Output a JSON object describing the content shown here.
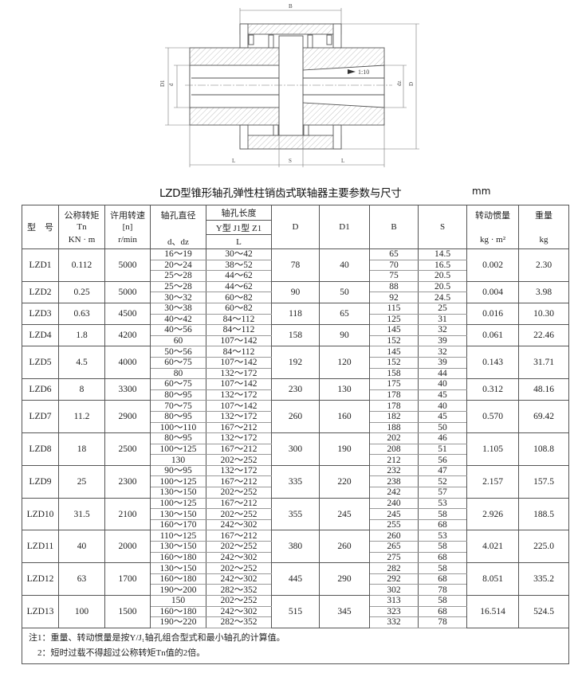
{
  "drawing": {
    "labels": {
      "B": "B",
      "L_left": "L",
      "S": "S",
      "L_right": "L",
      "D1": "D1",
      "d": "d",
      "dz": "dz",
      "D": "D",
      "taper": "1:10"
    }
  },
  "title": "LZD型锥形轴孔弹性柱销齿式联轴器主要参数与尺寸",
  "unit": "mm",
  "table": {
    "headers": {
      "model": "型　号",
      "tn_top": "公称转矩",
      "tn_mid": "Tn",
      "tn_unit": "KN · m",
      "n_top": "许用转速",
      "n_mid": "[n]",
      "n_unit": "r/min",
      "d_top": "轴孔直径",
      "d_unit": "d、dz",
      "l_top": "轴孔长度",
      "l_types": "Y型 J1型 Z1",
      "l_unit": "L",
      "D": "D",
      "D1": "D1",
      "B": "B",
      "S": "S",
      "inertia_top": "转动惯量",
      "inertia_unit": "kg · m²",
      "weight_top": "重量",
      "weight_unit": "kg"
    },
    "rows": [
      {
        "model": "LZD1",
        "tn": "0.112",
        "n": "5000",
        "D": "78",
        "D1": "40",
        "inertia": "0.002",
        "weight": "2.30",
        "sub": [
          [
            "16～19",
            "30～42",
            "65",
            "14.5"
          ],
          [
            "20～24",
            "38～52",
            "70",
            "16.5"
          ],
          [
            "25～28",
            "44～62",
            "75",
            "20.5"
          ]
        ]
      },
      {
        "model": "LZD2",
        "tn": "0.25",
        "n": "5000",
        "D": "90",
        "D1": "50",
        "inertia": "0.004",
        "weight": "3.98",
        "sub": [
          [
            "25～28",
            "44～62",
            "88",
            "20.5"
          ],
          [
            "30～32",
            "60～82",
            "92",
            "24.5"
          ]
        ]
      },
      {
        "model": "LZD3",
        "tn": "0.63",
        "n": "4500",
        "D": "118",
        "D1": "65",
        "inertia": "0.016",
        "weight": "10.30",
        "sub": [
          [
            "30～38",
            "60～82",
            "115",
            "25"
          ],
          [
            "40～42",
            "84～112",
            "125",
            "31"
          ]
        ]
      },
      {
        "model": "LZD4",
        "tn": "1.8",
        "n": "4200",
        "D": "158",
        "D1": "90",
        "inertia": "0.061",
        "weight": "22.46",
        "sub": [
          [
            "40～56",
            "84～112",
            "145",
            "32"
          ],
          [
            "60",
            "107～142",
            "152",
            "39"
          ]
        ]
      },
      {
        "model": "LZD5",
        "tn": "4.5",
        "n": "4000",
        "D": "192",
        "D1": "120",
        "inertia": "0.143",
        "weight": "31.71",
        "sub": [
          [
            "50～56",
            "84～112",
            "145",
            "32"
          ],
          [
            "60～75",
            "107～142",
            "152",
            "39"
          ],
          [
            "80",
            "132～172",
            "158",
            "44"
          ]
        ]
      },
      {
        "model": "LZD6",
        "tn": "8",
        "n": "3300",
        "D": "230",
        "D1": "130",
        "inertia": "0.312",
        "weight": "48.16",
        "sub": [
          [
            "60～75",
            "107～142",
            "175",
            "40"
          ],
          [
            "80～95",
            "132～172",
            "178",
            "45"
          ]
        ]
      },
      {
        "model": "LZD7",
        "tn": "11.2",
        "n": "2900",
        "D": "260",
        "D1": "160",
        "inertia": "0.570",
        "weight": "69.42",
        "sub": [
          [
            "70～75",
            "107～142",
            "178",
            "40"
          ],
          [
            "80～95",
            "132～172",
            "182",
            "45"
          ],
          [
            "100～110",
            "167～212",
            "188",
            "50"
          ]
        ]
      },
      {
        "model": "LZD8",
        "tn": "18",
        "n": "2500",
        "D": "300",
        "D1": "190",
        "inertia": "1.105",
        "weight": "108.8",
        "sub": [
          [
            "80～95",
            "132～172",
            "202",
            "46"
          ],
          [
            "100～125",
            "167～212",
            "208",
            "51"
          ],
          [
            "130",
            "202～252",
            "212",
            "56"
          ]
        ]
      },
      {
        "model": "LZD9",
        "tn": "25",
        "n": "2300",
        "D": "335",
        "D1": "220",
        "inertia": "2.157",
        "weight": "157.5",
        "sub": [
          [
            "90～95",
            "132～172",
            "232",
            "47"
          ],
          [
            "100～125",
            "167～212",
            "238",
            "52"
          ],
          [
            "130～150",
            "202～252",
            "242",
            "57"
          ]
        ]
      },
      {
        "model": "LZD10",
        "tn": "31.5",
        "n": "2100",
        "D": "355",
        "D1": "245",
        "inertia": "2.926",
        "weight": "188.5",
        "sub": [
          [
            "100～125",
            "167～212",
            "240",
            "53"
          ],
          [
            "130～150",
            "202～252",
            "245",
            "58"
          ],
          [
            "160～170",
            "242～302",
            "255",
            "68"
          ]
        ]
      },
      {
        "model": "LZD11",
        "tn": "40",
        "n": "2000",
        "D": "380",
        "D1": "260",
        "inertia": "4.021",
        "weight": "225.0",
        "sub": [
          [
            "110～125",
            "167～212",
            "260",
            "53"
          ],
          [
            "130～150",
            "202～252",
            "265",
            "58"
          ],
          [
            "160～180",
            "242～302",
            "275",
            "68"
          ]
        ]
      },
      {
        "model": "LZD12",
        "tn": "63",
        "n": "1700",
        "D": "445",
        "D1": "290",
        "inertia": "8.051",
        "weight": "335.2",
        "sub": [
          [
            "130～150",
            "202～252",
            "282",
            "58"
          ],
          [
            "160～180",
            "242～302",
            "292",
            "68"
          ],
          [
            "190～200",
            "282～352",
            "302",
            "78"
          ]
        ]
      },
      {
        "model": "LZD13",
        "tn": "100",
        "n": "1500",
        "D": "515",
        "D1": "345",
        "inertia": "16.514",
        "weight": "524.5",
        "sub": [
          [
            "150",
            "202～252",
            "313",
            "58"
          ],
          [
            "160～180",
            "242～302",
            "323",
            "68"
          ],
          [
            "190～220",
            "282～352",
            "332",
            "78"
          ]
        ]
      }
    ],
    "notes": [
      "注1：重量、转动惯量是按Y/J₁轴孔组合型式和最小轴孔的计算值。",
      "　2：短时过载不得超过公称转矩Tn值的2倍。"
    ]
  }
}
